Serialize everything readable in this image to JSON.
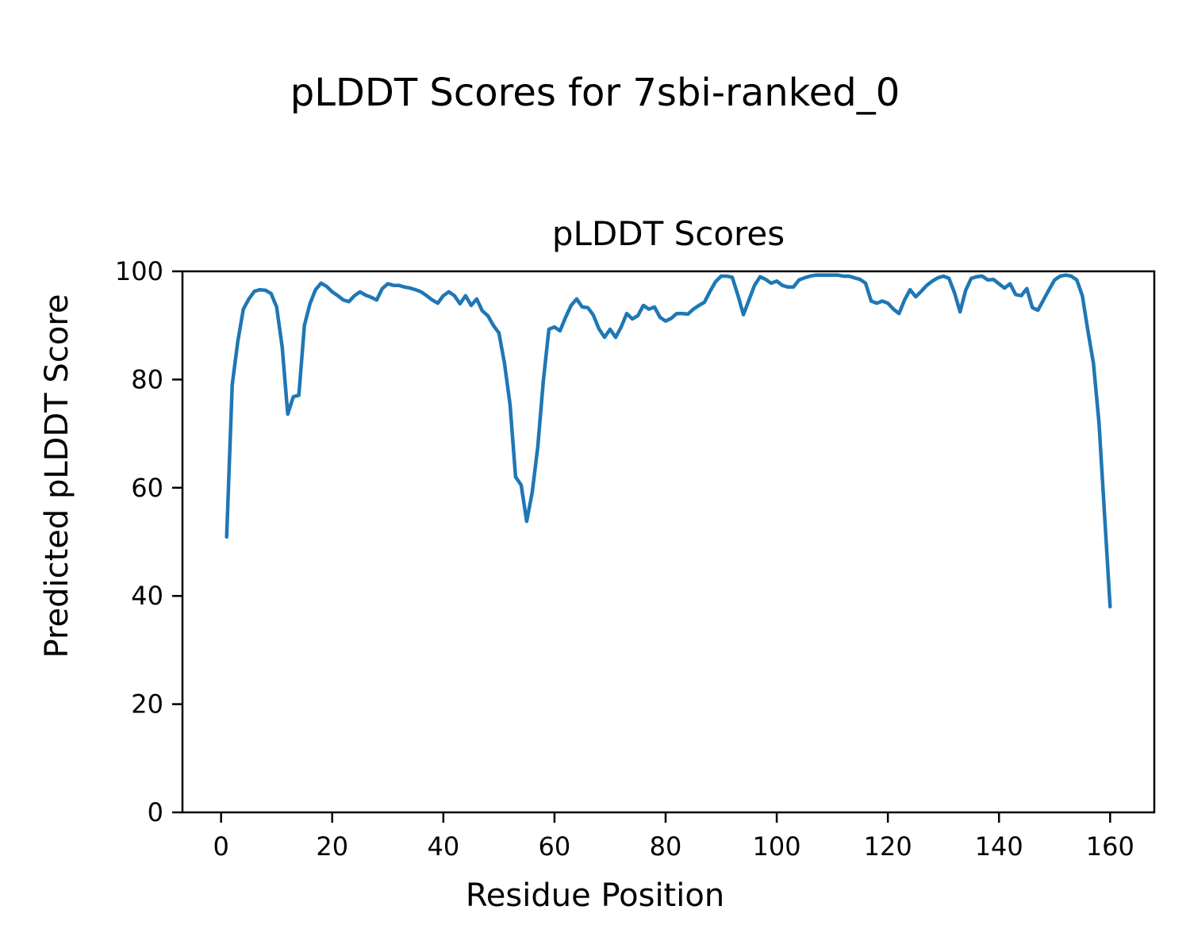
{
  "chart_data": {
    "type": "line",
    "suptitle": "pLDDT Scores for 7sbi-ranked_0",
    "title": "pLDDT Scores",
    "xlabel": "Residue Position",
    "ylabel": "Predicted pLDDT Score",
    "x_ticks": [
      0,
      20,
      40,
      60,
      80,
      100,
      120,
      140,
      160
    ],
    "y_ticks": [
      0,
      20,
      40,
      60,
      80,
      100
    ],
    "xlim": [
      -6.95,
      167.95
    ],
    "ylim": [
      0,
      100
    ],
    "grid": false,
    "legend": null,
    "x_start": 1,
    "x_step": 1,
    "series": [
      {
        "name": "pLDDT",
        "color": "#1f77b4",
        "values": [
          50.9,
          79.0,
          87.0,
          93.0,
          94.9,
          96.3,
          96.6,
          96.5,
          95.9,
          93.4,
          86.0,
          73.6,
          76.8,
          77.1,
          90.0,
          94.0,
          96.6,
          97.8,
          97.2,
          96.2,
          95.5,
          94.7,
          94.4,
          95.5,
          96.2,
          95.6,
          95.2,
          94.7,
          96.8,
          97.7,
          97.4,
          97.4,
          97.1,
          96.9,
          96.6,
          96.2,
          95.5,
          94.7,
          94.1,
          95.5,
          96.2,
          95.5,
          94.0,
          95.5,
          93.7,
          94.9,
          92.7,
          91.8,
          90.0,
          88.6,
          83.0,
          75.4,
          62.0,
          60.5,
          53.8,
          59.2,
          67.6,
          79.8,
          89.3,
          89.7,
          89.0,
          91.5,
          93.7,
          94.9,
          93.4,
          93.3,
          91.9,
          89.4,
          87.8,
          89.3,
          87.8,
          89.7,
          92.2,
          91.2,
          91.8,
          93.7,
          93.0,
          93.4,
          91.5,
          90.8,
          91.3,
          92.2,
          92.2,
          92.1,
          93.0,
          93.7,
          94.3,
          96.3,
          98.1,
          99.1,
          99.1,
          98.9,
          95.6,
          92.0,
          94.7,
          97.4,
          99.0,
          98.5,
          97.8,
          98.2,
          97.4,
          97.1,
          97.1,
          98.4,
          98.8,
          99.1,
          99.3,
          99.3,
          99.3,
          99.3,
          99.3,
          99.1,
          99.1,
          98.8,
          98.5,
          97.8,
          94.5,
          94.1,
          94.5,
          94.1,
          93.0,
          92.2,
          94.7,
          96.6,
          95.3,
          96.3,
          97.4,
          98.2,
          98.8,
          99.1,
          98.7,
          96.0,
          92.5,
          96.5,
          98.7,
          99.0,
          99.1,
          98.4,
          98.5,
          97.7,
          96.9,
          97.7,
          95.7,
          95.5,
          96.8,
          93.3,
          92.8,
          94.7,
          96.6,
          98.4,
          99.1,
          99.3,
          99.1,
          98.4,
          95.5,
          89.0,
          83.0,
          72.0,
          55.0,
          38.0
        ]
      }
    ],
    "style": {
      "line_color": "#1f77b4",
      "line_width": 4.5,
      "frame_color": "#000000",
      "tick_font_px": 32,
      "background": "#ffffff"
    }
  }
}
